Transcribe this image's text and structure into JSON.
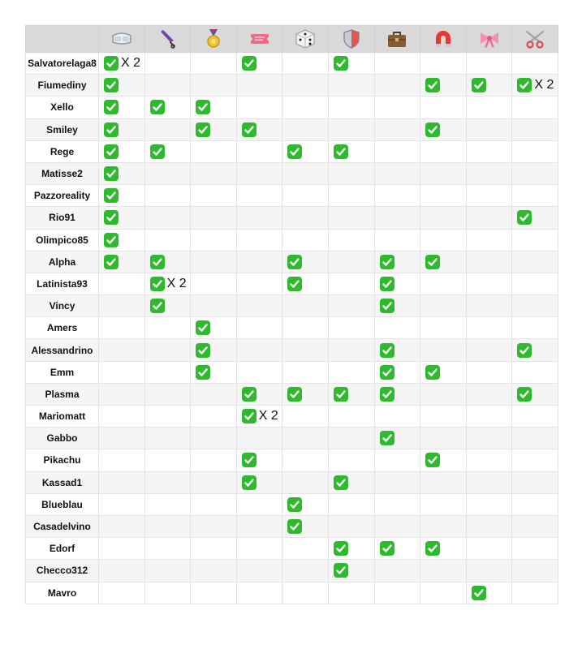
{
  "columns": [
    {
      "icon": "goggles-icon"
    },
    {
      "icon": "closed-umbrella-icon"
    },
    {
      "icon": "sports-medal-icon"
    },
    {
      "icon": "admission-ticket-icon"
    },
    {
      "icon": "game-die-icon"
    },
    {
      "icon": "shield-icon"
    },
    {
      "icon": "briefcase-icon"
    },
    {
      "icon": "magnet-icon"
    },
    {
      "icon": "ribbon-bow-icon"
    },
    {
      "icon": "scissors-icon"
    }
  ],
  "check_color": "#2dbb2d",
  "rows": [
    {
      "name": "Salvatorelaga8",
      "marks": [
        [
          "X 2"
        ],
        [],
        [],
        [
          ""
        ],
        [],
        [
          ""
        ],
        [],
        [],
        [],
        []
      ]
    },
    {
      "name": "Fiumediny",
      "marks": [
        [
          ""
        ],
        [],
        [],
        [],
        [],
        [],
        [],
        [
          ""
        ],
        [
          ""
        ],
        [
          "X 2"
        ]
      ]
    },
    {
      "name": "Xello",
      "marks": [
        [
          ""
        ],
        [
          ""
        ],
        [
          ""
        ],
        [],
        [],
        [],
        [],
        [],
        [],
        []
      ]
    },
    {
      "name": "Smiley",
      "marks": [
        [
          ""
        ],
        [],
        [
          ""
        ],
        [
          ""
        ],
        [],
        [],
        [],
        [
          ""
        ],
        [],
        []
      ]
    },
    {
      "name": "Rege",
      "marks": [
        [
          ""
        ],
        [
          ""
        ],
        [],
        [],
        [
          ""
        ],
        [
          ""
        ],
        [],
        [],
        [],
        []
      ]
    },
    {
      "name": "Matisse2",
      "marks": [
        [
          ""
        ],
        [],
        [],
        [],
        [],
        [],
        [],
        [],
        [],
        []
      ]
    },
    {
      "name": "Pazzoreality",
      "marks": [
        [
          ""
        ],
        [],
        [],
        [],
        [],
        [],
        [],
        [],
        [],
        []
      ]
    },
    {
      "name": "Rio91",
      "marks": [
        [
          ""
        ],
        [],
        [],
        [],
        [],
        [],
        [],
        [],
        [],
        [
          ""
        ]
      ]
    },
    {
      "name": "Olimpico85",
      "marks": [
        [
          ""
        ],
        [],
        [],
        [],
        [],
        [],
        [],
        [],
        [],
        []
      ]
    },
    {
      "name": "Alpha",
      "marks": [
        [
          ""
        ],
        [
          ""
        ],
        [],
        [],
        [
          ""
        ],
        [],
        [
          ""
        ],
        [
          ""
        ],
        [],
        []
      ]
    },
    {
      "name": "Latinista93",
      "marks": [
        [],
        [
          "X 2"
        ],
        [],
        [],
        [
          ""
        ],
        [],
        [
          ""
        ],
        [],
        [],
        []
      ]
    },
    {
      "name": "Vincy",
      "marks": [
        [],
        [
          ""
        ],
        [],
        [],
        [],
        [],
        [
          ""
        ],
        [],
        [],
        []
      ]
    },
    {
      "name": "Amers",
      "marks": [
        [],
        [],
        [
          ""
        ],
        [],
        [],
        [],
        [],
        [],
        [],
        []
      ]
    },
    {
      "name": "Alessandrino",
      "marks": [
        [],
        [],
        [
          ""
        ],
        [],
        [],
        [],
        [
          ""
        ],
        [],
        [],
        [
          ""
        ]
      ]
    },
    {
      "name": "Emm",
      "marks": [
        [],
        [],
        [
          ""
        ],
        [],
        [],
        [],
        [
          ""
        ],
        [
          ""
        ],
        [],
        []
      ]
    },
    {
      "name": "Plasma",
      "marks": [
        [],
        [],
        [],
        [
          ""
        ],
        [
          ""
        ],
        [
          ""
        ],
        [
          ""
        ],
        [],
        [],
        [
          ""
        ]
      ]
    },
    {
      "name": "Mariomatt",
      "marks": [
        [],
        [],
        [],
        [
          "X 2"
        ],
        [],
        [],
        [],
        [],
        [],
        []
      ]
    },
    {
      "name": "Gabbo",
      "marks": [
        [],
        [],
        [],
        [],
        [],
        [],
        [
          ""
        ],
        [],
        [],
        []
      ]
    },
    {
      "name": "Pikachu",
      "marks": [
        [],
        [],
        [],
        [
          ""
        ],
        [],
        [],
        [],
        [
          ""
        ],
        [],
        []
      ]
    },
    {
      "name": "Kassad1",
      "marks": [
        [],
        [],
        [],
        [
          ""
        ],
        [],
        [
          ""
        ],
        [],
        [],
        [],
        []
      ]
    },
    {
      "name": "Blueblau",
      "marks": [
        [],
        [],
        [],
        [],
        [
          ""
        ],
        [],
        [],
        [],
        [],
        []
      ]
    },
    {
      "name": "Casadelvino",
      "marks": [
        [],
        [],
        [],
        [],
        [
          ""
        ],
        [],
        [],
        [],
        [],
        []
      ]
    },
    {
      "name": "Edorf",
      "marks": [
        [],
        [],
        [],
        [],
        [],
        [
          ""
        ],
        [
          ""
        ],
        [
          ""
        ],
        [],
        []
      ]
    },
    {
      "name": "Checco312",
      "marks": [
        [],
        [],
        [],
        [],
        [],
        [
          ""
        ],
        [],
        [],
        [],
        []
      ]
    },
    {
      "name": "Mavro",
      "marks": [
        [],
        [],
        [],
        [],
        [],
        [],
        [],
        [],
        [
          ""
        ],
        []
      ]
    }
  ]
}
